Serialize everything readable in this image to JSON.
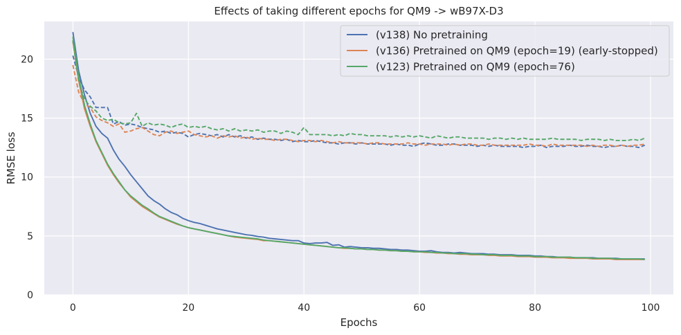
{
  "chart_data": {
    "type": "line",
    "title": "Effects of taking different epochs for QM9 -> wB97X-D3",
    "xlabel": "Epochs",
    "ylabel": "RMSE loss",
    "xlim": [
      -4.95,
      103.95
    ],
    "ylim": [
      0,
      23.2
    ],
    "x_ticks": [
      0,
      20,
      40,
      60,
      80,
      100
    ],
    "y_ticks": [
      0,
      5,
      10,
      15,
      20
    ],
    "grid": true,
    "legend_position": "top-right",
    "x": [
      0,
      1,
      2,
      3,
      4,
      5,
      6,
      7,
      8,
      9,
      10,
      11,
      12,
      13,
      14,
      15,
      16,
      17,
      18,
      19,
      20,
      21,
      22,
      23,
      24,
      25,
      26,
      27,
      28,
      29,
      30,
      31,
      32,
      33,
      34,
      35,
      36,
      37,
      38,
      39,
      40,
      41,
      42,
      43,
      44,
      45,
      46,
      47,
      48,
      49,
      50,
      51,
      52,
      53,
      54,
      55,
      56,
      57,
      58,
      59,
      60,
      61,
      62,
      63,
      64,
      65,
      66,
      67,
      68,
      69,
      70,
      71,
      72,
      73,
      74,
      75,
      76,
      77,
      78,
      79,
      80,
      81,
      82,
      83,
      84,
      85,
      86,
      87,
      88,
      89,
      90,
      91,
      92,
      93,
      94,
      95,
      96,
      97,
      98,
      99
    ],
    "series": [
      {
        "name": "(v138) No pretraining",
        "color": "#4c72b0",
        "train": [
          22.3,
          19.0,
          17.0,
          15.4,
          14.3,
          13.7,
          13.3,
          12.3,
          11.5,
          10.9,
          10.2,
          9.6,
          9.0,
          8.4,
          8.0,
          7.7,
          7.3,
          7.0,
          6.8,
          6.5,
          6.3,
          6.15,
          6.05,
          5.9,
          5.75,
          5.6,
          5.5,
          5.4,
          5.3,
          5.2,
          5.1,
          5.05,
          4.95,
          4.9,
          4.8,
          4.75,
          4.7,
          4.65,
          4.6,
          4.6,
          4.4,
          4.35,
          4.4,
          4.4,
          4.45,
          4.2,
          4.25,
          4.05,
          4.1,
          4.05,
          4.0,
          4.0,
          3.95,
          3.95,
          3.9,
          3.85,
          3.85,
          3.8,
          3.8,
          3.75,
          3.7,
          3.7,
          3.75,
          3.65,
          3.6,
          3.6,
          3.55,
          3.6,
          3.55,
          3.5,
          3.5,
          3.5,
          3.45,
          3.45,
          3.4,
          3.4,
          3.4,
          3.35,
          3.35,
          3.35,
          3.3,
          3.3,
          3.25,
          3.25,
          3.2,
          3.2,
          3.2,
          3.15,
          3.15,
          3.15,
          3.15,
          3.1,
          3.1,
          3.1,
          3.1,
          3.05,
          3.05,
          3.05,
          3.05,
          3.05
        ],
        "val": [
          20.3,
          18.5,
          17.4,
          16.8,
          15.9,
          15.9,
          15.9,
          14.5,
          14.7,
          14.4,
          14.5,
          14.4,
          14.2,
          14.1,
          14.0,
          13.8,
          13.9,
          13.7,
          13.8,
          13.7,
          13.4,
          13.6,
          13.7,
          13.6,
          13.5,
          13.6,
          13.4,
          13.6,
          13.4,
          13.5,
          13.3,
          13.4,
          13.2,
          13.3,
          13.2,
          13.2,
          13.1,
          13.2,
          13.0,
          13.1,
          13.0,
          13.0,
          13.1,
          13.0,
          12.9,
          12.9,
          12.8,
          12.9,
          12.9,
          12.8,
          12.9,
          12.8,
          12.8,
          12.8,
          12.8,
          12.7,
          12.8,
          12.7,
          12.7,
          12.6,
          12.8,
          12.9,
          12.8,
          12.7,
          12.7,
          12.8,
          12.8,
          12.7,
          12.7,
          12.7,
          12.6,
          12.7,
          12.6,
          12.7,
          12.6,
          12.6,
          12.6,
          12.6,
          12.5,
          12.6,
          12.6,
          12.7,
          12.5,
          12.6,
          12.6,
          12.6,
          12.7,
          12.6,
          12.6,
          12.7,
          12.6,
          12.6,
          12.5,
          12.6,
          12.6,
          12.7,
          12.6,
          12.6,
          12.5,
          12.7
        ]
      },
      {
        "name": "(v136) Pretrained on QM9 (epoch=19) (early-stopped)",
        "color": "#dd8452",
        "train": [
          21.5,
          18.2,
          15.8,
          14.3,
          13.0,
          12.0,
          11.0,
          10.2,
          9.5,
          8.9,
          8.3,
          7.9,
          7.5,
          7.2,
          6.9,
          6.6,
          6.4,
          6.2,
          6.0,
          5.85,
          5.7,
          5.6,
          5.5,
          5.4,
          5.3,
          5.2,
          5.1,
          5.0,
          4.9,
          4.85,
          4.8,
          4.75,
          4.7,
          4.6,
          4.6,
          4.55,
          4.5,
          4.45,
          4.4,
          4.35,
          4.3,
          4.25,
          4.2,
          4.15,
          4.1,
          4.05,
          4.0,
          3.95,
          3.95,
          3.9,
          3.9,
          3.85,
          3.85,
          3.8,
          3.8,
          3.75,
          3.75,
          3.7,
          3.7,
          3.65,
          3.65,
          3.6,
          3.6,
          3.55,
          3.55,
          3.5,
          3.5,
          3.45,
          3.45,
          3.4,
          3.4,
          3.4,
          3.35,
          3.35,
          3.3,
          3.3,
          3.3,
          3.25,
          3.25,
          3.25,
          3.2,
          3.2,
          3.2,
          3.15,
          3.15,
          3.15,
          3.1,
          3.1,
          3.1,
          3.1,
          3.05,
          3.05,
          3.05,
          3.05,
          3.0,
          3.0,
          3.0,
          3.0,
          3.0,
          3.0
        ],
        "val": [
          19.5,
          17.2,
          16.2,
          15.9,
          15.1,
          14.8,
          14.6,
          14.3,
          14.5,
          13.8,
          13.9,
          14.1,
          14.2,
          13.9,
          13.6,
          13.5,
          13.8,
          13.9,
          13.7,
          13.8,
          13.9,
          13.6,
          13.5,
          13.4,
          13.5,
          13.3,
          13.5,
          13.4,
          13.5,
          13.3,
          13.4,
          13.2,
          13.3,
          13.2,
          13.2,
          13.1,
          13.2,
          13.2,
          13.1,
          13.0,
          13.1,
          13.1,
          13.0,
          13.1,
          13.0,
          12.9,
          13.0,
          12.9,
          12.9,
          12.9,
          12.9,
          12.8,
          12.9,
          12.9,
          12.8,
          12.8,
          12.8,
          12.8,
          12.9,
          12.8,
          12.8,
          12.7,
          12.8,
          12.8,
          12.8,
          12.7,
          12.8,
          12.7,
          12.8,
          12.8,
          12.7,
          12.7,
          12.8,
          12.7,
          12.7,
          12.7,
          12.7,
          12.7,
          12.7,
          12.8,
          12.7,
          12.7,
          12.6,
          12.8,
          12.7,
          12.7,
          12.7,
          12.7,
          12.7,
          12.6,
          12.7,
          12.6,
          12.7,
          12.7,
          12.6,
          12.7,
          12.6,
          12.7,
          12.7,
          12.8
        ]
      },
      {
        "name": "(v123) Pretrained on QM9 (epoch=76)",
        "color": "#55a868",
        "train": [
          21.9,
          18.5,
          16.1,
          14.5,
          13.1,
          12.1,
          11.1,
          10.3,
          9.6,
          8.9,
          8.4,
          8.0,
          7.6,
          7.3,
          6.95,
          6.65,
          6.45,
          6.25,
          6.05,
          5.85,
          5.7,
          5.6,
          5.5,
          5.4,
          5.3,
          5.2,
          5.1,
          5.0,
          4.95,
          4.9,
          4.85,
          4.8,
          4.75,
          4.65,
          4.6,
          4.55,
          4.5,
          4.45,
          4.4,
          4.35,
          4.3,
          4.25,
          4.2,
          4.15,
          4.1,
          4.05,
          4.0,
          4.0,
          3.95,
          3.9,
          3.9,
          3.85,
          3.85,
          3.8,
          3.8,
          3.75,
          3.75,
          3.7,
          3.7,
          3.65,
          3.65,
          3.65,
          3.6,
          3.6,
          3.55,
          3.55,
          3.5,
          3.5,
          3.5,
          3.45,
          3.45,
          3.4,
          3.4,
          3.4,
          3.35,
          3.35,
          3.35,
          3.3,
          3.3,
          3.3,
          3.25,
          3.25,
          3.25,
          3.2,
          3.2,
          3.2,
          3.2,
          3.15,
          3.15,
          3.15,
          3.1,
          3.1,
          3.1,
          3.1,
          3.05,
          3.05,
          3.05,
          3.05,
          3.05,
          3.0
        ],
        "val": [
          21.6,
          18.1,
          16.6,
          16.0,
          15.6,
          15.0,
          14.8,
          14.9,
          14.6,
          14.5,
          14.6,
          15.4,
          14.3,
          14.6,
          14.4,
          14.5,
          14.4,
          14.2,
          14.4,
          14.5,
          14.2,
          14.3,
          14.2,
          14.3,
          14.1,
          14.0,
          14.1,
          13.9,
          14.1,
          13.9,
          14.0,
          13.9,
          14.0,
          13.8,
          13.9,
          13.9,
          13.7,
          13.9,
          13.8,
          13.6,
          14.2,
          13.6,
          13.6,
          13.6,
          13.6,
          13.5,
          13.6,
          13.5,
          13.7,
          13.6,
          13.6,
          13.5,
          13.5,
          13.5,
          13.5,
          13.4,
          13.5,
          13.4,
          13.5,
          13.4,
          13.5,
          13.4,
          13.3,
          13.5,
          13.4,
          13.3,
          13.4,
          13.4,
          13.3,
          13.3,
          13.3,
          13.3,
          13.2,
          13.3,
          13.3,
          13.2,
          13.3,
          13.2,
          13.3,
          13.2,
          13.2,
          13.2,
          13.2,
          13.3,
          13.2,
          13.2,
          13.2,
          13.2,
          13.1,
          13.2,
          13.2,
          13.2,
          13.1,
          13.2,
          13.1,
          13.1,
          13.1,
          13.2,
          13.1,
          13.3
        ]
      }
    ]
  }
}
